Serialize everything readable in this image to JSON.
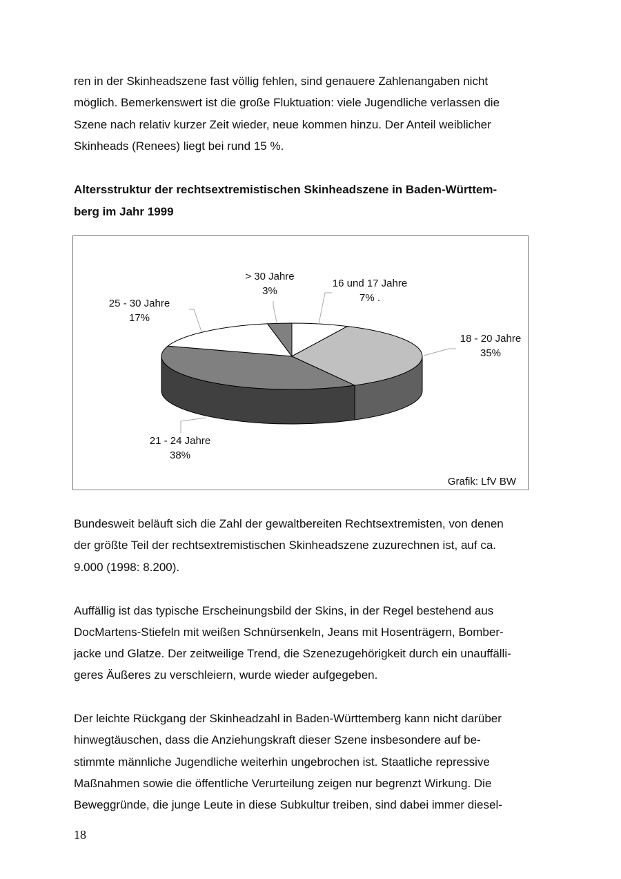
{
  "paragraph1": [
    "ren in der Skinheadszene fast völlig fehlen, sind genauere Zahlenangaben nicht",
    "möglich. Bemerkenswert ist die große Fluktuation: viele Jugendliche verlassen die",
    "Szene nach relativ kurzer Zeit wieder, neue kommen hinzu. Der Anteil weiblicher",
    "Skinheads (Renees) liegt bei rund 15 %."
  ],
  "heading": [
    "Altersstruktur der rechtsextremistischen Skinheadszene in Baden-Württem-",
    "berg im Jahr 1999"
  ],
  "chart_data": {
    "type": "pie",
    "style": "3d",
    "categories": [
      "16 und 17 Jahre",
      "18 - 20 Jahre",
      "21 - 24 Jahre",
      "25 - 30 Jahre",
      "> 30 Jahre"
    ],
    "values": [
      7,
      35,
      38,
      17,
      3
    ],
    "value_labels": [
      "7% .",
      "35%",
      "38%",
      "17%",
      "3%"
    ],
    "colors": [
      "#ffffff",
      "#c0c0c0",
      "#808080",
      "#ffffff",
      "#808080"
    ],
    "side_colors": [
      "#e0e0e0",
      "#606060",
      "#404040",
      "#e0e0e0",
      "#505050"
    ],
    "source": "Grafik: LfV BW"
  },
  "paragraph2": [
    "Bundesweit beläuft sich die Zahl der gewaltbereiten Rechtsextremisten, von denen",
    "der größte Teil der rechtsextremistischen Skinheadszene zuzurechnen ist, auf ca.",
    "9.000 (1998: 8.200)."
  ],
  "paragraph3": [
    "Auffällig ist das typische Erscheinungsbild der Skins, in der Regel bestehend aus",
    "DocMartens-Stiefeln mit weißen Schnürsenkeln, Jeans mit Hosenträgern, Bomber-",
    "jacke und Glatze. Der zeitweilige Trend, die Szenezugehörigkeit durch ein unauffälli-",
    "geres Äußeres zu verschleiern, wurde wieder aufgegeben."
  ],
  "paragraph4": [
    "Der leichte Rückgang der Skinheadzahl in Baden-Württemberg kann nicht darüber",
    "hinwegtäuschen, dass die Anziehungskraft dieser Szene insbesondere auf be-",
    "stimmte männliche Jugendliche weiterhin ungebrochen ist. Staatliche repressive",
    "Maßnahmen sowie die öffentliche Verurteilung zeigen nur begrenzt Wirkung. Die",
    "Beweggründe, die junge Leute in diese Subkultur treiben, sind dabei immer diesel-"
  ],
  "page_number": "18"
}
